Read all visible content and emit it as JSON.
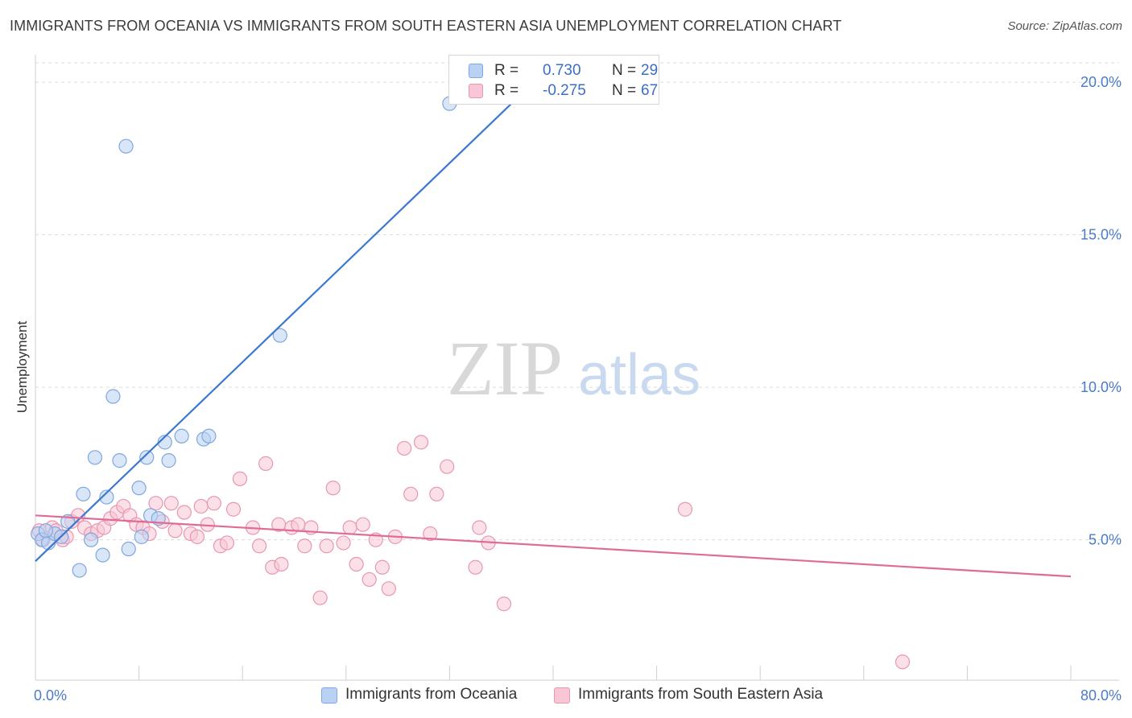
{
  "title": "IMMIGRANTS FROM OCEANIA VS IMMIGRANTS FROM SOUTH EASTERN ASIA UNEMPLOYMENT CORRELATION CHART",
  "source": "Source: ZipAtlas.com",
  "watermark": {
    "zip": "ZIP",
    "atlas": "atlas"
  },
  "colors": {
    "oceania_fill": "#b9d2f3",
    "oceania_stroke": "#7ea7e0",
    "oceania_line": "#3b78d0",
    "sea_fill": "#f8c6d5",
    "sea_stroke": "#e897b1",
    "sea_line": "#e06b96",
    "grid": "#dcdcdc",
    "tick_text": "#4a7bc8"
  },
  "legend_top": [
    {
      "r_label": "R =",
      "r_value": "0.730",
      "n_label": "N =",
      "n_value": "29"
    },
    {
      "r_label": "R =",
      "r_value": "-0.275",
      "n_label": "N =",
      "n_value": "67"
    }
  ],
  "chart_data": {
    "type": "scatter",
    "ylabel": "Unemployment",
    "x_tick_labels": [
      "0.0%",
      "80.0%"
    ],
    "y_tick_labels": [
      "5.0%",
      "10.0%",
      "15.0%",
      "20.0%"
    ],
    "y_ticks": [
      5,
      10,
      15,
      20
    ],
    "xlim": [
      0,
      80
    ],
    "ylim": [
      0.4,
      20.9
    ],
    "grid": true,
    "legend_position": "top-center",
    "series": [
      {
        "name": "Immigrants from Oceania",
        "r": 0.73,
        "n": 29,
        "trend": {
          "x0": 0,
          "y0": 4.3,
          "x1": 38.5,
          "y1": 20.0
        },
        "points": [
          [
            0.2,
            5.2
          ],
          [
            0.5,
            5.0
          ],
          [
            1.0,
            4.9
          ],
          [
            1.5,
            5.2
          ],
          [
            2.0,
            5.1
          ],
          [
            2.5,
            5.6
          ],
          [
            3.4,
            4.0
          ],
          [
            3.7,
            6.5
          ],
          [
            4.3,
            5.0
          ],
          [
            4.6,
            7.7
          ],
          [
            5.2,
            4.5
          ],
          [
            5.5,
            6.4
          ],
          [
            6.0,
            9.7
          ],
          [
            6.5,
            7.6
          ],
          [
            7.0,
            17.9
          ],
          [
            7.2,
            4.7
          ],
          [
            8.0,
            6.7
          ],
          [
            8.2,
            5.1
          ],
          [
            8.6,
            7.7
          ],
          [
            8.9,
            5.8
          ],
          [
            9.5,
            5.7
          ],
          [
            10.0,
            8.2
          ],
          [
            10.3,
            7.6
          ],
          [
            11.3,
            8.4
          ],
          [
            13.0,
            8.3
          ],
          [
            13.4,
            8.4
          ],
          [
            18.9,
            11.7
          ],
          [
            32.0,
            19.3
          ],
          [
            0.8,
            5.3
          ]
        ]
      },
      {
        "name": "Immigrants from South Eastern Asia",
        "r": -0.275,
        "n": 67,
        "trend": {
          "x0": 0,
          "y0": 5.8,
          "x1": 80,
          "y1": 3.8
        },
        "points": [
          [
            0.3,
            5.3
          ],
          [
            0.6,
            5.0
          ],
          [
            1.3,
            5.4
          ],
          [
            1.6,
            5.3
          ],
          [
            2.1,
            5.0
          ],
          [
            2.4,
            5.1
          ],
          [
            2.8,
            5.6
          ],
          [
            3.3,
            5.8
          ],
          [
            3.8,
            5.4
          ],
          [
            4.3,
            5.2
          ],
          [
            4.8,
            5.3
          ],
          [
            5.3,
            5.4
          ],
          [
            5.8,
            5.7
          ],
          [
            6.3,
            5.9
          ],
          [
            6.8,
            6.1
          ],
          [
            7.3,
            5.8
          ],
          [
            7.8,
            5.5
          ],
          [
            8.3,
            5.4
          ],
          [
            8.8,
            5.2
          ],
          [
            9.3,
            6.2
          ],
          [
            9.8,
            5.6
          ],
          [
            10.5,
            6.2
          ],
          [
            10.8,
            5.3
          ],
          [
            11.5,
            5.9
          ],
          [
            12.0,
            5.2
          ],
          [
            12.5,
            5.1
          ],
          [
            12.8,
            6.1
          ],
          [
            13.3,
            5.5
          ],
          [
            13.8,
            6.2
          ],
          [
            14.3,
            4.8
          ],
          [
            14.8,
            4.9
          ],
          [
            15.3,
            6.0
          ],
          [
            15.8,
            7.0
          ],
          [
            16.8,
            5.4
          ],
          [
            17.3,
            4.8
          ],
          [
            17.8,
            7.5
          ],
          [
            18.3,
            4.1
          ],
          [
            18.8,
            5.5
          ],
          [
            19.0,
            4.2
          ],
          [
            19.8,
            5.4
          ],
          [
            20.3,
            5.5
          ],
          [
            20.8,
            4.8
          ],
          [
            21.3,
            5.4
          ],
          [
            22.0,
            3.1
          ],
          [
            22.5,
            4.8
          ],
          [
            23.0,
            6.7
          ],
          [
            23.8,
            4.9
          ],
          [
            24.3,
            5.4
          ],
          [
            24.8,
            4.2
          ],
          [
            25.3,
            5.5
          ],
          [
            25.8,
            3.7
          ],
          [
            26.3,
            5.0
          ],
          [
            26.8,
            4.1
          ],
          [
            27.3,
            3.4
          ],
          [
            27.8,
            5.1
          ],
          [
            28.5,
            8.0
          ],
          [
            29.0,
            6.5
          ],
          [
            29.8,
            8.2
          ],
          [
            30.5,
            5.2
          ],
          [
            31.0,
            6.5
          ],
          [
            31.8,
            7.4
          ],
          [
            34.0,
            4.1
          ],
          [
            34.3,
            5.4
          ],
          [
            35.0,
            4.9
          ],
          [
            36.2,
            2.9
          ],
          [
            50.2,
            6.0
          ],
          [
            67.0,
            1.0
          ]
        ]
      }
    ]
  }
}
